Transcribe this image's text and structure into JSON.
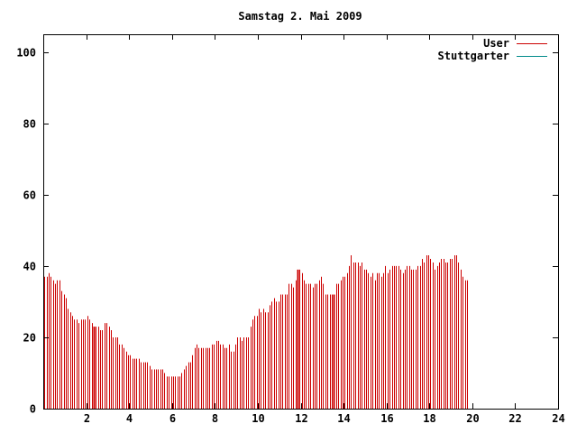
{
  "chart_data": {
    "type": "bar",
    "title": "Samstag 2. Mai 2009",
    "xlabel": "",
    "ylabel": "",
    "xlim": [
      0,
      24
    ],
    "ylim": [
      0,
      105
    ],
    "x_ticks": [
      2,
      4,
      6,
      8,
      10,
      12,
      14,
      16,
      18,
      20,
      22,
      24
    ],
    "y_ticks": [
      0,
      20,
      40,
      60,
      80,
      100
    ],
    "grid": false,
    "legend_position": "top-right",
    "series": [
      {
        "name": "User",
        "color": "#cc0000",
        "bin_width_hours": 0.1,
        "values": [
          37,
          37,
          38,
          37,
          36,
          35,
          36,
          36,
          33,
          32,
          31,
          28,
          27,
          26,
          25,
          25,
          24,
          25,
          25,
          25,
          26,
          25,
          24,
          23,
          23,
          23,
          22,
          22,
          24,
          24,
          23,
          22,
          20,
          20,
          20,
          18,
          18,
          17,
          16,
          15,
          15,
          14,
          14,
          14,
          14,
          13,
          13,
          13,
          13,
          12,
          11,
          11,
          11,
          11,
          11,
          11,
          10,
          9,
          9,
          9,
          9,
          9,
          9,
          9,
          10,
          11,
          12,
          13,
          13,
          15,
          17,
          18,
          17,
          17,
          17,
          17,
          17,
          17,
          18,
          18,
          19,
          19,
          18,
          18,
          17,
          17,
          18,
          16,
          16,
          18,
          20,
          20,
          19,
          20,
          20,
          20,
          23,
          25,
          26,
          26,
          28,
          27,
          28,
          27,
          27,
          29,
          30,
          31,
          30,
          30,
          32,
          32,
          32,
          32,
          35,
          35,
          34,
          36,
          39,
          39,
          38,
          36,
          35,
          35,
          35,
          34,
          35,
          35,
          36,
          37,
          35,
          32,
          32,
          32,
          32,
          32,
          35,
          35,
          36,
          37,
          37,
          38,
          40,
          43,
          41,
          41,
          41,
          40,
          41,
          39,
          39,
          38,
          37,
          38,
          36,
          38,
          38,
          37,
          38,
          40,
          38,
          39,
          40,
          40,
          40,
          40,
          39,
          38,
          39,
          40,
          40,
          39,
          39,
          39,
          40,
          40,
          42,
          41,
          43,
          43,
          42,
          41,
          39,
          40,
          41,
          42,
          42,
          41,
          41,
          42,
          42,
          43,
          43,
          41,
          39,
          37,
          36,
          36
        ],
        "emphasized_bins": [
          23,
          118,
          135
        ]
      },
      {
        "name": "Stuttgarter",
        "color": "#008b8b",
        "values": []
      }
    ]
  }
}
